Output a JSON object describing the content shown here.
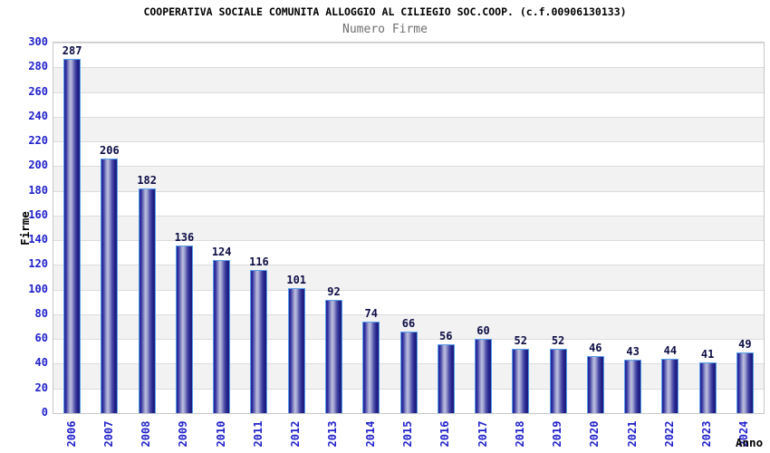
{
  "chart_data": {
    "type": "bar",
    "title": "COOPERATIVA SOCIALE COMUNITA ALLOGGIO AL CILIEGIO SOC.COOP. (c.f.00906130133)",
    "subtitle": "Numero Firme",
    "xlabel": "Anno",
    "ylabel": "Firme",
    "categories": [
      "2006",
      "2007",
      "2008",
      "2009",
      "2010",
      "2011",
      "2012",
      "2013",
      "2014",
      "2015",
      "2016",
      "2017",
      "2018",
      "2019",
      "2020",
      "2021",
      "2022",
      "2023",
      "2024"
    ],
    "values": [
      287,
      206,
      182,
      136,
      124,
      116,
      101,
      92,
      74,
      66,
      56,
      60,
      52,
      52,
      46,
      43,
      44,
      41,
      49
    ],
    "ylim": [
      0,
      300
    ],
    "ytick_step": 20,
    "legend": "none",
    "grid": "horizontal lines every 20 with alternating white/gray bands",
    "colors": {
      "bar_border": "#58a0e8",
      "bar_dark": "#23239a",
      "bar_light": "#bdc0de",
      "value_label": "#0d0d46",
      "tick_label": "#2121cc",
      "band_gray": "#f2f2f2",
      "band_white": "#ffffff",
      "gridline": "#dcdcdc",
      "frame": "#c8c8c8",
      "title": "#000000",
      "subtitle": "#6e6e6e"
    }
  }
}
